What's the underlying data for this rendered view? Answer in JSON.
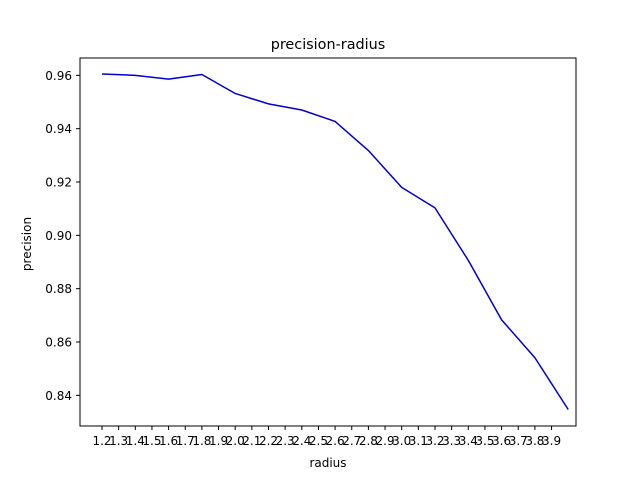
{
  "chart_data": {
    "type": "line",
    "title": "precision-radius",
    "xlabel": "radius",
    "ylabel": "precision",
    "x_tick_labels": [
      "1.2",
      "1.3",
      "1.4",
      "1.5",
      "1.6",
      "1.7",
      "1.8",
      "1.9",
      "2.0",
      "2.1",
      "2.2",
      "2.3",
      "2.4",
      "2.5",
      "2.6",
      "2.7",
      "2.8",
      "2.9",
      "3.0",
      "3.1",
      "3.2",
      "3.3",
      "3.4",
      "3.5",
      "3.6",
      "3.7",
      "3.8",
      "3.9"
    ],
    "y_ticks": [
      0.84,
      0.86,
      0.88,
      0.9,
      0.92,
      0.94,
      0.96
    ],
    "y_tick_labels": [
      "0.84",
      "0.86",
      "0.88",
      "0.90",
      "0.92",
      "0.94",
      "0.96"
    ],
    "ylim": [
      0.8285,
      0.9665
    ],
    "grid": false,
    "series": [
      {
        "color": "#0000cc",
        "x": [
          1.2,
          1.4,
          1.6,
          1.8,
          2.0,
          2.2,
          2.4,
          2.6,
          2.8,
          3.0,
          3.2,
          3.4,
          3.6,
          3.8,
          4.0
        ],
        "y": [
          0.9605,
          0.96,
          0.9586,
          0.9603,
          0.9532,
          0.9493,
          0.947,
          0.9427,
          0.9318,
          0.918,
          0.9103,
          0.8906,
          0.8683,
          0.8541,
          0.8347
        ]
      }
    ]
  }
}
